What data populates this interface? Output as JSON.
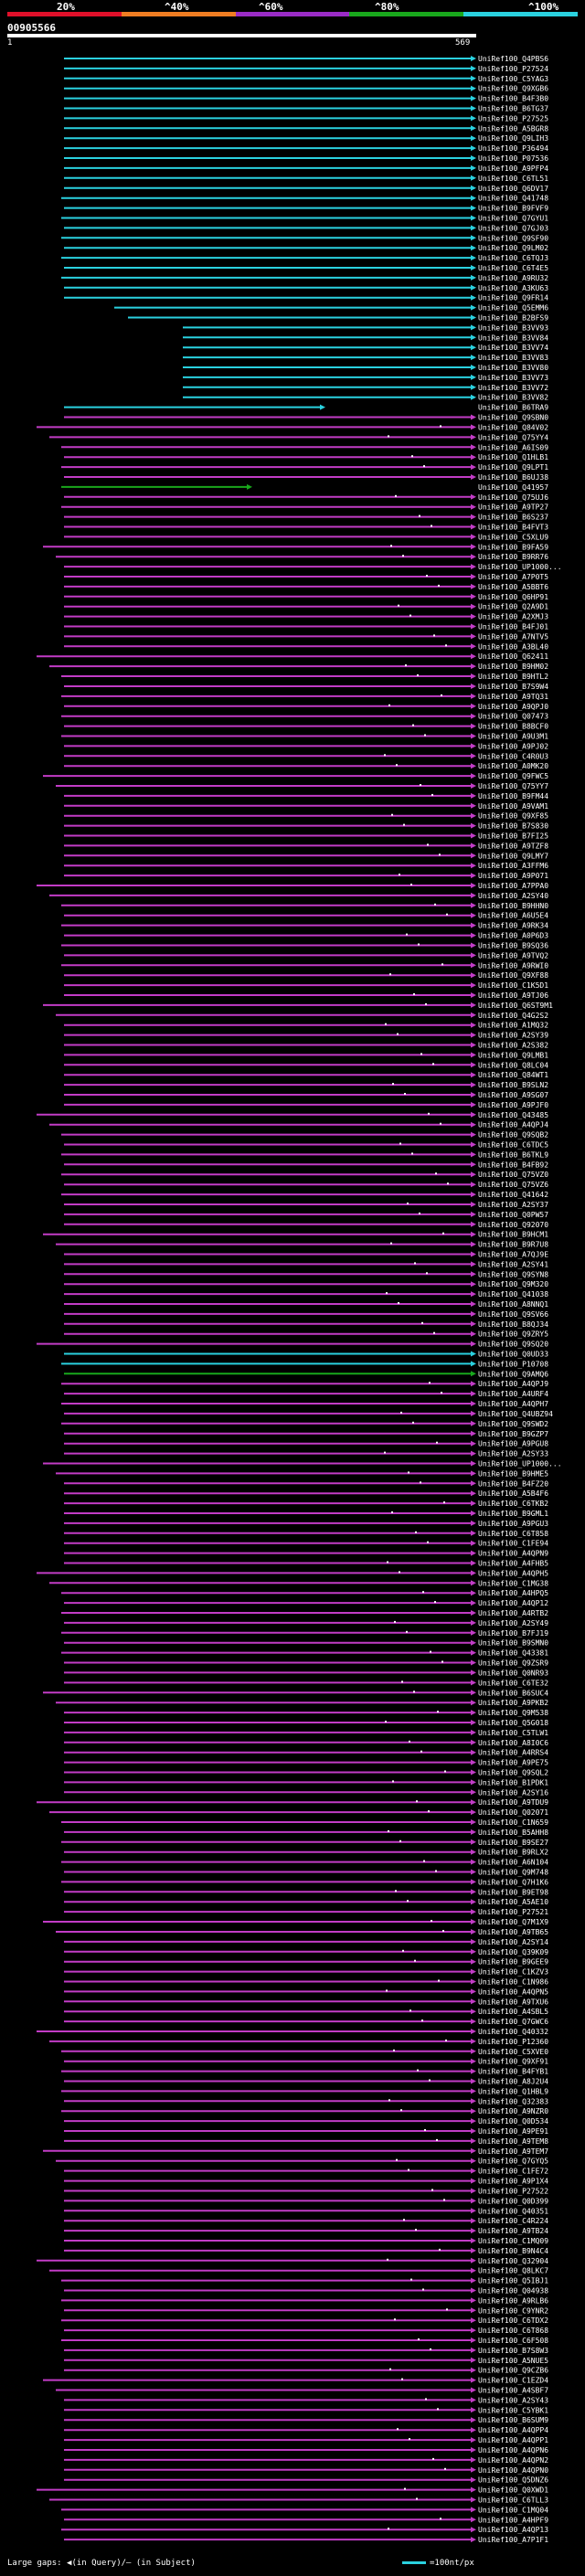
{
  "scale": {
    "labels": [
      "20%",
      "^40%",
      "^60%",
      "^80%",
      "^100%"
    ],
    "colors": [
      "#e0102a",
      "#ef7d22",
      "#9a2cc6",
      "#19a81c",
      "#2ad1df"
    ]
  },
  "query": {
    "id": "00905566",
    "start": "1",
    "end": "569"
  },
  "legend": {
    "left": "Large gaps: ◀(in Query)/– (in Subject)",
    "right": "=100nt/px"
  },
  "palette": {
    "cyan": "#2ad1df",
    "magenta": "#c23cc6",
    "green": "#19a81c"
  },
  "hits": [
    {
      "id": "UniRef100_Q4PBS6",
      "c": "cyan"
    },
    {
      "id": "UniRef100_P27524",
      "c": "cyan"
    },
    {
      "id": "UniRef100_C5YAG3",
      "c": "cyan"
    },
    {
      "id": "UniRef100_Q9XGB6",
      "c": "cyan"
    },
    {
      "id": "UniRef100_B4F3B0",
      "c": "cyan"
    },
    {
      "id": "UniRef100_B6TG37",
      "c": "cyan"
    },
    {
      "id": "UniRef100_P27525",
      "c": "cyan"
    },
    {
      "id": "UniRef100_A5BGR8",
      "c": "cyan"
    },
    {
      "id": "UniRef100_Q9LIH3",
      "c": "cyan"
    },
    {
      "id": "UniRef100_P36494",
      "c": "cyan"
    },
    {
      "id": "UniRef100_P07536",
      "c": "cyan"
    },
    {
      "id": "UniRef100_A9PFP4",
      "c": "cyan"
    },
    {
      "id": "UniRef100_C6TL51",
      "c": "cyan"
    },
    {
      "id": "UniRef100_Q6DV17",
      "c": "cyan"
    },
    {
      "id": "UniRef100_Q41748",
      "c": "cyan"
    },
    {
      "id": "UniRef100_B9FVF9",
      "c": "cyan"
    },
    {
      "id": "UniRef100_Q7GYU1",
      "c": "cyan"
    },
    {
      "id": "UniRef100_Q7GJ03",
      "c": "cyan"
    },
    {
      "id": "UniRef100_Q9SF90",
      "c": "cyan"
    },
    {
      "id": "UniRef100_Q9LM02",
      "c": "cyan"
    },
    {
      "id": "UniRef100_C6TQJ3",
      "c": "cyan"
    },
    {
      "id": "UniRef100_C6T4E5",
      "c": "cyan"
    },
    {
      "id": "UniRef100_A9RU32",
      "c": "cyan"
    },
    {
      "id": "UniRef100_A3KU63",
      "c": "cyan"
    },
    {
      "id": "UniRef100_Q9FR14",
      "c": "cyan"
    },
    {
      "id": "UniRef100_Q5EMM6",
      "c": "cyan"
    },
    {
      "id": "UniRef100_B2BFS9",
      "c": "cyan"
    },
    {
      "id": "UniRef100_B3VV93",
      "c": "cyan"
    },
    {
      "id": "UniRef100_B3VV84",
      "c": "cyan"
    },
    {
      "id": "UniRef100_B3VV74",
      "c": "cyan"
    },
    {
      "id": "UniRef100_B3VV83",
      "c": "cyan"
    },
    {
      "id": "UniRef100_B3VV80",
      "c": "cyan"
    },
    {
      "id": "UniRef100_B3VV73",
      "c": "cyan"
    },
    {
      "id": "UniRef100_B3VV72",
      "c": "cyan"
    },
    {
      "id": "UniRef100_B3VV82",
      "c": "cyan"
    },
    {
      "id": "UniRef100_B6TRA9",
      "c": "cyan"
    },
    {
      "id": "UniRef100_Q9SBN0",
      "c": "magenta"
    },
    {
      "id": "UniRef100_Q84V02",
      "c": "magenta"
    },
    {
      "id": "UniRef100_Q75YY4",
      "c": "magenta"
    },
    {
      "id": "UniRef100_A6IS09",
      "c": "magenta"
    },
    {
      "id": "UniRef100_Q1HLB1",
      "c": "magenta"
    },
    {
      "id": "UniRef100_Q9LPT1",
      "c": "magenta"
    },
    {
      "id": "UniRef100_B6UJ38",
      "c": "magenta"
    },
    {
      "id": "UniRef100_Q41957",
      "c": "green"
    },
    {
      "id": "UniRef100_Q75UJ6",
      "c": "magenta"
    },
    {
      "id": "UniRef100_A9TP27",
      "c": "magenta"
    },
    {
      "id": "UniRef100_B6S237",
      "c": "magenta"
    },
    {
      "id": "UniRef100_B4FVT3",
      "c": "magenta"
    },
    {
      "id": "UniRef100_C5XLU9",
      "c": "magenta"
    },
    {
      "id": "UniRef100_B9FA59",
      "c": "magenta"
    },
    {
      "id": "UniRef100_B9RR76",
      "c": "magenta"
    },
    {
      "id": "UniRef100_UP1000...",
      "c": "magenta"
    },
    {
      "id": "UniRef100_A7P0T5",
      "c": "magenta"
    },
    {
      "id": "UniRef100_A5BBT6",
      "c": "magenta"
    },
    {
      "id": "UniRef100_Q6HP91",
      "c": "magenta"
    },
    {
      "id": "UniRef100_Q2A9D1",
      "c": "magenta"
    },
    {
      "id": "UniRef100_A2XMJ3",
      "c": "magenta"
    },
    {
      "id": "UniRef100_B4FJ01",
      "c": "magenta"
    },
    {
      "id": "UniRef100_A7NTV5",
      "c": "magenta"
    },
    {
      "id": "UniRef100_A3BL40",
      "c": "magenta"
    },
    {
      "id": "UniRef100_Q62411",
      "c": "magenta"
    },
    {
      "id": "UniRef100_B9HM02",
      "c": "magenta"
    },
    {
      "id": "UniRef100_B9HTL2",
      "c": "magenta"
    },
    {
      "id": "UniRef100_B7S9W4",
      "c": "magenta"
    },
    {
      "id": "UniRef100_A9TQ31",
      "c": "magenta"
    },
    {
      "id": "UniRef100_A9QPJ0",
      "c": "magenta"
    },
    {
      "id": "UniRef100_Q07473",
      "c": "magenta"
    },
    {
      "id": "UniRef100_B8BCF0",
      "c": "magenta"
    },
    {
      "id": "UniRef100_A9U3M1",
      "c": "magenta"
    },
    {
      "id": "UniRef100_A9PJ02",
      "c": "magenta"
    },
    {
      "id": "UniRef100_C4R0U3",
      "c": "magenta"
    },
    {
      "id": "UniRef100_A0MK20",
      "c": "magenta"
    },
    {
      "id": "UniRef100_Q9FWC5",
      "c": "magenta"
    },
    {
      "id": "UniRef100_Q75YY7",
      "c": "magenta"
    },
    {
      "id": "UniRef100_B9FM44",
      "c": "magenta"
    },
    {
      "id": "UniRef100_A9VAM1",
      "c": "magenta"
    },
    {
      "id": "UniRef100_Q9XF85",
      "c": "magenta"
    },
    {
      "id": "UniRef100_B7S830",
      "c": "magenta"
    },
    {
      "id": "UniRef100_B7FI25",
      "c": "magenta"
    },
    {
      "id": "UniRef100_A9TZF8",
      "c": "magenta"
    },
    {
      "id": "UniRef100_Q9LMY7",
      "c": "magenta"
    },
    {
      "id": "UniRef100_A3FFM6",
      "c": "magenta"
    },
    {
      "id": "UniRef100_A9P071",
      "c": "magenta"
    },
    {
      "id": "UniRef100_A7PPA0",
      "c": "magenta"
    },
    {
      "id": "UniRef100_A2SY40",
      "c": "magenta"
    },
    {
      "id": "UniRef100_B9HHN0",
      "c": "magenta"
    },
    {
      "id": "UniRef100_A6U5E4",
      "c": "magenta"
    },
    {
      "id": "UniRef100_A9RK34",
      "c": "magenta"
    },
    {
      "id": "UniRef100_A0P6D3",
      "c": "magenta"
    },
    {
      "id": "UniRef100_B9SQ36",
      "c": "magenta"
    },
    {
      "id": "UniRef100_A9TVQ2",
      "c": "magenta"
    },
    {
      "id": "UniRef100_A9RWI0",
      "c": "magenta"
    },
    {
      "id": "UniRef100_Q9XF88",
      "c": "magenta"
    },
    {
      "id": "UniRef100_C1K5D1",
      "c": "magenta"
    },
    {
      "id": "UniRef100_A9TJ06",
      "c": "magenta"
    },
    {
      "id": "UniRef100_Q6ST9M1",
      "c": "magenta"
    },
    {
      "id": "UniRef100_Q4G2S2",
      "c": "magenta"
    },
    {
      "id": "UniRef100_A1MQ32",
      "c": "magenta"
    },
    {
      "id": "UniRef100_A2SY39",
      "c": "magenta"
    },
    {
      "id": "UniRef100_A2S382",
      "c": "magenta"
    },
    {
      "id": "UniRef100_Q9LMB1",
      "c": "magenta"
    },
    {
      "id": "UniRef100_Q8LC04",
      "c": "magenta"
    },
    {
      "id": "UniRef100_Q84WT1",
      "c": "magenta"
    },
    {
      "id": "UniRef100_B9SLN2",
      "c": "magenta"
    },
    {
      "id": "UniRef100_A9SG07",
      "c": "magenta"
    },
    {
      "id": "UniRef100_A9PJF0",
      "c": "magenta"
    },
    {
      "id": "UniRef100_Q43485",
      "c": "magenta"
    },
    {
      "id": "UniRef100_A4QPJ4",
      "c": "magenta"
    },
    {
      "id": "UniRef100_Q9SQB2",
      "c": "magenta"
    },
    {
      "id": "UniRef100_C6TDC5",
      "c": "magenta"
    },
    {
      "id": "UniRef100_B6TKL9",
      "c": "magenta"
    },
    {
      "id": "UniRef100_B4FB92",
      "c": "magenta"
    },
    {
      "id": "UniRef100_Q75VZ0",
      "c": "magenta"
    },
    {
      "id": "UniRef100_Q75VZ6",
      "c": "magenta"
    },
    {
      "id": "UniRef100_Q41642",
      "c": "magenta"
    },
    {
      "id": "UniRef100_A2SY37",
      "c": "magenta"
    },
    {
      "id": "UniRef100_Q0PW57",
      "c": "magenta"
    },
    {
      "id": "UniRef100_Q92070",
      "c": "magenta"
    },
    {
      "id": "UniRef100_B9HCM1",
      "c": "magenta"
    },
    {
      "id": "UniRef100_B9R7U8",
      "c": "magenta"
    },
    {
      "id": "UniRef100_A7QJ9E",
      "c": "magenta"
    },
    {
      "id": "UniRef100_A2SY41",
      "c": "magenta"
    },
    {
      "id": "UniRef100_Q9SYN8",
      "c": "magenta"
    },
    {
      "id": "UniRef100_Q9M320",
      "c": "magenta"
    },
    {
      "id": "UniRef100_Q41038",
      "c": "magenta"
    },
    {
      "id": "UniRef100_A8NNQ1",
      "c": "magenta"
    },
    {
      "id": "UniRef100_Q9SV66",
      "c": "magenta"
    },
    {
      "id": "UniRef100_B8QJ34",
      "c": "magenta"
    },
    {
      "id": "UniRef100_Q9ZRY5",
      "c": "magenta"
    },
    {
      "id": "UniRef100_Q9SQ20",
      "c": "magenta"
    },
    {
      "id": "UniRef100_Q0UD33",
      "c": "cyan"
    },
    {
      "id": "UniRef100_P10708",
      "c": "cyan"
    },
    {
      "id": "UniRef100_Q9AMQ6",
      "c": "green"
    },
    {
      "id": "UniRef100_A4QPJ9",
      "c": "magenta"
    },
    {
      "id": "UniRef100_A4URF4",
      "c": "magenta"
    },
    {
      "id": "UniRef100_A4QPH7",
      "c": "magenta"
    },
    {
      "id": "UniRef100_Q4UBZ94",
      "c": "magenta"
    },
    {
      "id": "UniRef100_Q9SWD2",
      "c": "magenta"
    },
    {
      "id": "UniRef100_B9GZP7",
      "c": "magenta"
    },
    {
      "id": "UniRef100_A9PGU8",
      "c": "magenta"
    },
    {
      "id": "UniRef100_A2SY33",
      "c": "magenta"
    },
    {
      "id": "UniRef100_UP1000...",
      "c": "magenta"
    },
    {
      "id": "UniRef100_B9HME5",
      "c": "magenta"
    },
    {
      "id": "UniRef100_B4FZ20",
      "c": "magenta"
    },
    {
      "id": "UniRef100_A5B4F6",
      "c": "magenta"
    },
    {
      "id": "UniRef100_C6TKB2",
      "c": "magenta"
    },
    {
      "id": "UniRef100_B9GML1",
      "c": "magenta"
    },
    {
      "id": "UniRef100_A9PGU3",
      "c": "magenta"
    },
    {
      "id": "UniRef100_C6T858",
      "c": "magenta"
    },
    {
      "id": "UniRef100_C1FE94",
      "c": "magenta"
    },
    {
      "id": "UniRef100_A4QPN9",
      "c": "magenta"
    },
    {
      "id": "UniRef100_A4FHB5",
      "c": "magenta"
    },
    {
      "id": "UniRef100_A4QPH5",
      "c": "magenta"
    },
    {
      "id": "UniRef100_C1MG38",
      "c": "magenta"
    },
    {
      "id": "UniRef100_A4HPQ5",
      "c": "magenta"
    },
    {
      "id": "UniRef100_A4QP12",
      "c": "magenta"
    },
    {
      "id": "UniRef100_A4RTB2",
      "c": "magenta"
    },
    {
      "id": "UniRef100_A2SY49",
      "c": "magenta"
    },
    {
      "id": "UniRef100_B7FJ19",
      "c": "magenta"
    },
    {
      "id": "UniRef100_B9SMN0",
      "c": "magenta"
    },
    {
      "id": "UniRef100_Q43381",
      "c": "magenta"
    },
    {
      "id": "UniRef100_Q9ZSR9",
      "c": "magenta"
    },
    {
      "id": "UniRef100_Q0NR93",
      "c": "magenta"
    },
    {
      "id": "UniRef100_C6TE32",
      "c": "magenta"
    },
    {
      "id": "UniRef100_B6SUC4",
      "c": "magenta"
    },
    {
      "id": "UniRef100_A9PKB2",
      "c": "magenta"
    },
    {
      "id": "UniRef100_Q9M538",
      "c": "magenta"
    },
    {
      "id": "UniRef100_Q5G018",
      "c": "magenta"
    },
    {
      "id": "UniRef100_C5TLW1",
      "c": "magenta"
    },
    {
      "id": "UniRef100_A8I0C6",
      "c": "magenta"
    },
    {
      "id": "UniRef100_A4RRS4",
      "c": "magenta"
    },
    {
      "id": "UniRef100_A9PE75",
      "c": "magenta"
    },
    {
      "id": "UniRef100_Q9SQL2",
      "c": "magenta"
    },
    {
      "id": "UniRef100_B1PDK1",
      "c": "magenta"
    },
    {
      "id": "UniRef100_A2SY16",
      "c": "magenta"
    },
    {
      "id": "UniRef100_A9TDU9",
      "c": "magenta"
    },
    {
      "id": "UniRef100_Q02071",
      "c": "magenta"
    },
    {
      "id": "UniRef100_C1N659",
      "c": "magenta"
    },
    {
      "id": "UniRef100_B5AHH8",
      "c": "magenta"
    },
    {
      "id": "UniRef100_B9SE27",
      "c": "magenta"
    },
    {
      "id": "UniRef100_B9RLX2",
      "c": "magenta"
    },
    {
      "id": "UniRef100_A6N104",
      "c": "magenta"
    },
    {
      "id": "UniRef100_Q9M748",
      "c": "magenta"
    },
    {
      "id": "UniRef100_Q7H1K6",
      "c": "magenta"
    },
    {
      "id": "UniRef100_B9ET98",
      "c": "magenta"
    },
    {
      "id": "UniRef100_A5AE10",
      "c": "magenta"
    },
    {
      "id": "UniRef100_P27521",
      "c": "magenta"
    },
    {
      "id": "UniRef100_Q7M1X9",
      "c": "magenta"
    },
    {
      "id": "UniRef100_A9TB65",
      "c": "magenta"
    },
    {
      "id": "UniRef100_A2SY14",
      "c": "magenta"
    },
    {
      "id": "UniRef100_Q39K09",
      "c": "magenta"
    },
    {
      "id": "UniRef100_B9GEE9",
      "c": "magenta"
    },
    {
      "id": "UniRef100_C1KZV3",
      "c": "magenta"
    },
    {
      "id": "UniRef100_C1N986",
      "c": "magenta"
    },
    {
      "id": "UniRef100_A4QPN5",
      "c": "magenta"
    },
    {
      "id": "UniRef100_A9TXU6",
      "c": "magenta"
    },
    {
      "id": "UniRef100_A4SBL5",
      "c": "magenta"
    },
    {
      "id": "UniRef100_Q7GWC6",
      "c": "magenta"
    },
    {
      "id": "UniRef100_Q40332",
      "c": "magenta"
    },
    {
      "id": "UniRef100_P12360",
      "c": "magenta"
    },
    {
      "id": "UniRef100_C5XVE0",
      "c": "magenta"
    },
    {
      "id": "UniRef100_Q9XF91",
      "c": "magenta"
    },
    {
      "id": "UniRef100_B4FYB1",
      "c": "magenta"
    },
    {
      "id": "UniRef100_A8J2U4",
      "c": "magenta"
    },
    {
      "id": "UniRef100_Q1HBL9",
      "c": "magenta"
    },
    {
      "id": "UniRef100_Q32383",
      "c": "magenta"
    },
    {
      "id": "UniRef100_A9NZR0",
      "c": "magenta"
    },
    {
      "id": "UniRef100_Q0D534",
      "c": "magenta"
    },
    {
      "id": "UniRef100_A9PE91",
      "c": "magenta"
    },
    {
      "id": "UniRef100_A9TEM8",
      "c": "magenta"
    },
    {
      "id": "UniRef100_A9TEM7",
      "c": "magenta"
    },
    {
      "id": "UniRef100_Q7GYQ5",
      "c": "magenta"
    },
    {
      "id": "UniRef100_C1FE72",
      "c": "magenta"
    },
    {
      "id": "UniRef100_A9P1X4",
      "c": "magenta"
    },
    {
      "id": "UniRef100_P27522",
      "c": "magenta"
    },
    {
      "id": "UniRef100_Q0D399",
      "c": "magenta"
    },
    {
      "id": "UniRef100_Q40351",
      "c": "magenta"
    },
    {
      "id": "UniRef100_C4R224",
      "c": "magenta"
    },
    {
      "id": "UniRef100_A9TB24",
      "c": "magenta"
    },
    {
      "id": "UniRef100_C1MQ09",
      "c": "magenta"
    },
    {
      "id": "UniRef100_B9N4C4",
      "c": "magenta"
    },
    {
      "id": "UniRef100_Q32904",
      "c": "magenta"
    },
    {
      "id": "UniRef100_Q8LKC7",
      "c": "magenta"
    },
    {
      "id": "UniRef100_Q5IBJ1",
      "c": "magenta"
    },
    {
      "id": "UniRef100_Q04938",
      "c": "magenta"
    },
    {
      "id": "UniRef100_A9RLB6",
      "c": "magenta"
    },
    {
      "id": "UniRef100_C9YNR2",
      "c": "magenta"
    },
    {
      "id": "UniRef100_C6TDX2",
      "c": "magenta"
    },
    {
      "id": "UniRef100_C6T868",
      "c": "magenta"
    },
    {
      "id": "UniRef100_C6F508",
      "c": "magenta"
    },
    {
      "id": "UniRef100_B7S8W3",
      "c": "magenta"
    },
    {
      "id": "UniRef100_A5NUE5",
      "c": "magenta"
    },
    {
      "id": "UniRef100_Q9CZB6",
      "c": "magenta"
    },
    {
      "id": "UniRef100_C1EZD4",
      "c": "magenta"
    },
    {
      "id": "UniRef100_A4SBF7",
      "c": "magenta"
    },
    {
      "id": "UniRef100_A2SY43",
      "c": "magenta"
    },
    {
      "id": "UniRef100_C5YBK1",
      "c": "magenta"
    },
    {
      "id": "UniRef100_B6SUM9",
      "c": "magenta"
    },
    {
      "id": "UniRef100_A4QPP4",
      "c": "magenta"
    },
    {
      "id": "UniRef100_A4QPP1",
      "c": "magenta"
    },
    {
      "id": "UniRef100_A4QPN6",
      "c": "magenta"
    },
    {
      "id": "UniRef100_A4QPN2",
      "c": "magenta"
    },
    {
      "id": "UniRef100_A4QPN0",
      "c": "magenta"
    },
    {
      "id": "UniRef100_Q5DNZ6",
      "c": "magenta"
    },
    {
      "id": "UniRef100_Q0XWD1",
      "c": "magenta"
    },
    {
      "id": "UniRef100_C6TLL3",
      "c": "magenta"
    },
    {
      "id": "UniRef100_C1MQ04",
      "c": "magenta"
    },
    {
      "id": "UniRef100_A4HPF9",
      "c": "magenta"
    },
    {
      "id": "UniRef100_A4QP13",
      "c": "magenta"
    },
    {
      "id": "UniRef100_A7P1F1",
      "c": "magenta"
    }
  ]
}
